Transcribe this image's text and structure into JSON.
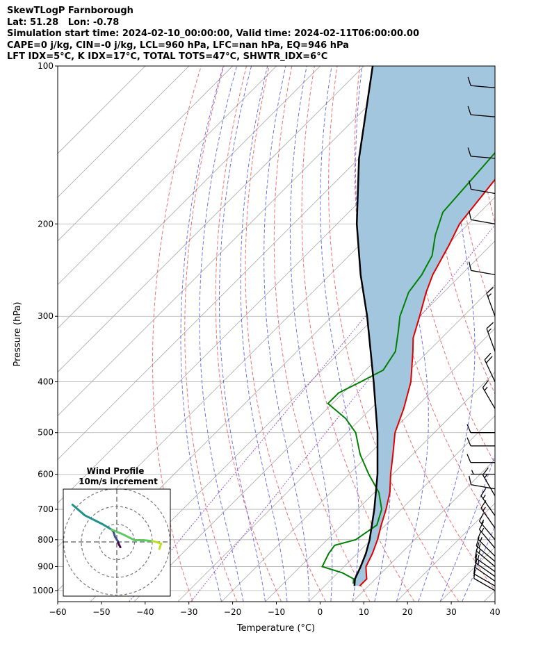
{
  "header": {
    "line1": "SkewTLogP Farnborough",
    "line2": "Lat: 51.28   Lon: -0.78",
    "line3": "Simulation start time: 2024-02-10_00:00:00, Valid time: 2024-02-11T06:00:00.00",
    "line4": "CAPE=0 j/kg, CIN=-0 j/kg, LCL=960 hPa, LFC=nan hPa, EQ=946 hPa",
    "line5": "LFT IDX=5$^\\circ$C, K IDX=17$^\\circ$C, TOTAL TOTS=47$^\\circ$C, SHWTR_IDX=6$^\\circ$C"
  },
  "colors": {
    "temperature": "#e00000",
    "dewpoint": "#008000",
    "parcel": "#000000",
    "cape_fill": "#a3c6df",
    "dry_adiabat": "#f06060",
    "moist_adiabat": "#6060f0",
    "mixing_ratio": "#9040c0",
    "isotherm": "#a8a8a8",
    "isobar": "#b0b0b0"
  },
  "chart_data": [
    {
      "type": "line",
      "subtype": "skew-t log-p",
      "xlabel": "Temperature ($^\\circ$C)",
      "ylabel": "Pressure (hPa)",
      "xlim": [
        -60,
        40
      ],
      "ylim": [
        1050,
        100
      ],
      "y_scale": "log",
      "x_ticks": [
        -60,
        -50,
        -40,
        -30,
        -20,
        -10,
        0,
        10,
        20,
        30,
        40
      ],
      "x_tick_labels": [
        "−60",
        "−50",
        "−40",
        "−30",
        "−20",
        "−10",
        "0",
        "10",
        "20",
        "30",
        "40"
      ],
      "y_ticks": [
        1000,
        900,
        800,
        700,
        600,
        500,
        400,
        300,
        200,
        100
      ],
      "y_tick_labels": [
        "1000",
        "900",
        "800",
        "700",
        "600",
        "500",
        "400",
        "300",
        "200",
        "100"
      ],
      "grid": true,
      "series": [
        {
          "key": "temperature",
          "p": [
            980,
            950,
            925,
            900,
            850,
            800,
            750,
            700,
            650,
            600,
            550,
            500,
            450,
            400,
            350,
            330,
            300,
            270,
            250,
            220,
            200,
            150,
            130,
            100
          ],
          "t": [
            8,
            8,
            6.5,
            5,
            3.5,
            1.5,
            -1,
            -3.5,
            -6.5,
            -10.5,
            -14.5,
            -19,
            -22.5,
            -27,
            -33.5,
            -36.5,
            -40,
            -44,
            -46.5,
            -49.5,
            -52,
            -55,
            -57,
            -59
          ]
        },
        {
          "key": "dewpoint",
          "p": [
            970,
            950,
            925,
            900,
            850,
            820,
            800,
            750,
            700,
            650,
            600,
            550,
            500,
            470,
            440,
            420,
            400,
            380,
            350,
            320,
            300,
            270,
            250,
            230,
            210,
            190,
            150,
            100
          ],
          "t": [
            6,
            5,
            1,
            -5,
            -6.5,
            -7,
            -3.5,
            -2,
            -4.5,
            -9,
            -15.5,
            -22,
            -28,
            -33.5,
            -41,
            -41,
            -38.5,
            -36,
            -37.5,
            -41.5,
            -44.5,
            -48,
            -49,
            -51,
            -55,
            -58.5,
            -60,
            -63
          ]
        },
        {
          "key": "parcel",
          "p": [
            980,
            960,
            950,
            900,
            850,
            800,
            700,
            600,
            500,
            400,
            300,
            250,
            200,
            150,
            100
          ],
          "t": [
            6.8,
            5.8,
            5.3,
            3.8,
            2.0,
            -0.3,
            -6.2,
            -13.5,
            -23.0,
            -35.5,
            -52.0,
            -63.0,
            -75.5,
            -90.0,
            -108.0
          ]
        }
      ],
      "cape_fill": {
        "between": [
          "temperature",
          "parcel"
        ]
      }
    },
    {
      "type": "line",
      "subtype": "hodograph",
      "title": "Wind Profile",
      "subtitle": "10m/s increment",
      "rings_ms": [
        10,
        20,
        30
      ],
      "series": [
        {
          "u": [
            2,
            1.5,
            1,
            0.5
          ],
          "v": [
            -3,
            -2,
            -1,
            0.5
          ],
          "color": "#440154"
        },
        {
          "u": [
            0.5,
            -1,
            -2,
            -3
          ],
          "v": [
            0.5,
            3,
            6,
            7
          ],
          "color": "#3b528b"
        },
        {
          "u": [
            -3,
            -8,
            -18,
            -25
          ],
          "v": [
            7,
            10,
            15,
            21
          ],
          "color": "#21918c"
        },
        {
          "u": [
            -3,
            4,
            8,
            10,
            15,
            20
          ],
          "v": [
            7,
            4,
            2,
            1,
            1,
            0.5
          ],
          "color": "#5ec962"
        },
        {
          "u": [
            20,
            22,
            25,
            24
          ],
          "v": [
            0.5,
            0,
            -1,
            -4
          ],
          "color": "#bddf26"
        }
      ]
    },
    {
      "type": "scatter",
      "subtype": "wind barbs",
      "p": [
        1000,
        980,
        960,
        940,
        920,
        900,
        880,
        860,
        830,
        800,
        760,
        720,
        660,
        640,
        600,
        570,
        530,
        500,
        450,
        400,
        350,
        300,
        250,
        200,
        175,
        150,
        125,
        110
      ],
      "speed_kt": [
        10,
        12,
        14,
        15,
        15,
        15,
        15,
        15,
        15,
        15,
        15,
        15,
        15,
        10,
        5,
        10,
        10,
        10,
        15,
        20,
        15,
        15,
        10,
        10,
        10,
        10,
        10,
        10
      ],
      "direction_deg": [
        300,
        300,
        305,
        305,
        305,
        310,
        310,
        315,
        320,
        320,
        325,
        325,
        330,
        280,
        270,
        270,
        270,
        270,
        330,
        335,
        340,
        340,
        280,
        280,
        280,
        275,
        275,
        275
      ]
    }
  ]
}
